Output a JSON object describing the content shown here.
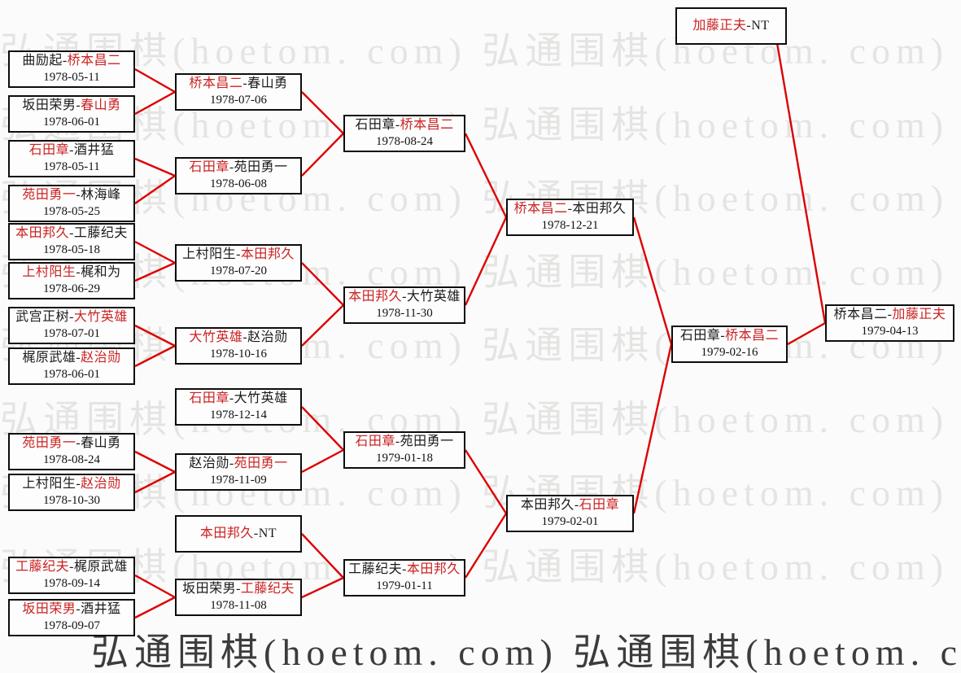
{
  "watermark": {
    "text": "弘通围棋(hoetom. com)",
    "color": "#e4e4e3",
    "dark_color": "#3c3c3c"
  },
  "dash": "-",
  "colors": {
    "winner_text": "#cc2222",
    "connector_line": "#dd0000",
    "box_border": "#0d0d0d"
  },
  "matches": {
    "m0": {
      "p1": "曲励起",
      "p2": "桥本昌二",
      "winner": "p2",
      "date": "1978-05-11"
    },
    "m1": {
      "p1": "坂田荣男",
      "p2": "春山勇",
      "winner": "p2",
      "date": "1978-06-01"
    },
    "m2": {
      "p1": "石田章",
      "p2": "酒井猛",
      "winner": "p1",
      "date": "1978-05-11"
    },
    "m3": {
      "p1": "苑田勇一",
      "p2": "林海峰",
      "winner": "p1",
      "date": "1978-05-25"
    },
    "m4": {
      "p1": "本田邦久",
      "p2": "工藤纪夫",
      "winner": "p1",
      "date": "1978-05-18"
    },
    "m5": {
      "p1": "上村阳生",
      "p2": "梶和为",
      "winner": "p1",
      "date": "1978-06-29"
    },
    "m6": {
      "p1": "武宫正树",
      "p2": "大竹英雄",
      "winner": "p2",
      "date": "1978-07-01"
    },
    "m7": {
      "p1": "梶原武雄",
      "p2": "赵治勋",
      "winner": "p2",
      "date": "1978-06-01"
    },
    "m8": {
      "p1": "苑田勇一",
      "p2": "春山勇",
      "winner": "p1",
      "date": "1978-08-24"
    },
    "m9": {
      "p1": "上村阳生",
      "p2": "赵治勋",
      "winner": "p2",
      "date": "1978-10-30"
    },
    "m10": {
      "p1": "工藤纪夫",
      "p2": "梶原武雄",
      "winner": "p1",
      "date": "1978-09-14"
    },
    "m11": {
      "p1": "坂田荣男",
      "p2": "酒井猛",
      "winner": "p1",
      "date": "1978-09-07"
    },
    "b0": {
      "p1": "桥本昌二",
      "p2": "春山勇",
      "winner": "p1",
      "date": "1978-07-06"
    },
    "b1": {
      "p1": "石田章",
      "p2": "苑田勇一",
      "winner": "p1",
      "date": "1978-06-08"
    },
    "b2": {
      "p1": "上村阳生",
      "p2": "本田邦久",
      "winner": "p2",
      "date": "1978-07-20"
    },
    "b3": {
      "p1": "大竹英雄",
      "p2": "赵治勋",
      "winner": "p1",
      "date": "1978-10-16"
    },
    "b4": {
      "p1": "石田章",
      "p2": "大竹英雄",
      "winner": "p1",
      "date": "1978-12-14"
    },
    "b5": {
      "p1": "赵治勋",
      "p2": "苑田勇一",
      "winner": "p2",
      "date": "1978-11-09"
    },
    "b6": {
      "p1": "本田邦久",
      "p2": "NT",
      "winner": "p1",
      "date": ""
    },
    "b7": {
      "p1": "坂田荣男",
      "p2": "工藤纪夫",
      "winner": "p2",
      "date": "1978-11-08"
    },
    "c0": {
      "p1": "石田章",
      "p2": "桥本昌二",
      "winner": "p2",
      "date": "1978-08-24"
    },
    "c1": {
      "p1": "本田邦久",
      "p2": "大竹英雄",
      "winner": "p1",
      "date": "1978-11-30"
    },
    "c2": {
      "p1": "石田章",
      "p2": "苑田勇一",
      "winner": "p1",
      "date": "1979-01-18"
    },
    "c3": {
      "p1": "工藤纪夫",
      "p2": "本田邦久",
      "winner": "p2",
      "date": "1979-01-11"
    },
    "d0": {
      "p1": "桥本昌二",
      "p2": "本田邦久",
      "winner": "p1",
      "date": "1978-12-21"
    },
    "d1": {
      "p1": "本田邦久",
      "p2": "石田章",
      "winner": "p2",
      "date": "1979-02-01"
    },
    "e0": {
      "p1": "石田章",
      "p2": "桥本昌二",
      "winner": "p2",
      "date": "1979-02-16"
    },
    "f0": {
      "p1": "加藤正夫",
      "p2": "NT",
      "winner": "p1",
      "date": ""
    },
    "g0": {
      "p1": "桥本昌二",
      "p2": "加藤正夫",
      "winner": "p2",
      "date": "1979-04-13"
    }
  },
  "connections": [
    [
      "m0",
      "b0"
    ],
    [
      "m1",
      "b0"
    ],
    [
      "m2",
      "b1"
    ],
    [
      "m3",
      "b1"
    ],
    [
      "m4",
      "b2"
    ],
    [
      "m5",
      "b2"
    ],
    [
      "m6",
      "b3"
    ],
    [
      "m7",
      "b3"
    ],
    [
      "m8",
      "b5"
    ],
    [
      "m9",
      "b5"
    ],
    [
      "m10",
      "b7"
    ],
    [
      "m11",
      "b7"
    ],
    [
      "b0",
      "c0"
    ],
    [
      "b1",
      "c0"
    ],
    [
      "b2",
      "c1"
    ],
    [
      "b3",
      "c1"
    ],
    [
      "b4",
      "c2"
    ],
    [
      "b5",
      "c2"
    ],
    [
      "b6",
      "c3"
    ],
    [
      "b7",
      "c3"
    ],
    [
      "c0",
      "d0"
    ],
    [
      "c1",
      "d0"
    ],
    [
      "c2",
      "d1"
    ],
    [
      "c3",
      "d1"
    ],
    [
      "d0",
      "e0"
    ],
    [
      "d1",
      "e0"
    ],
    [
      "e0",
      "g0"
    ],
    [
      "f0",
      "g0"
    ]
  ]
}
